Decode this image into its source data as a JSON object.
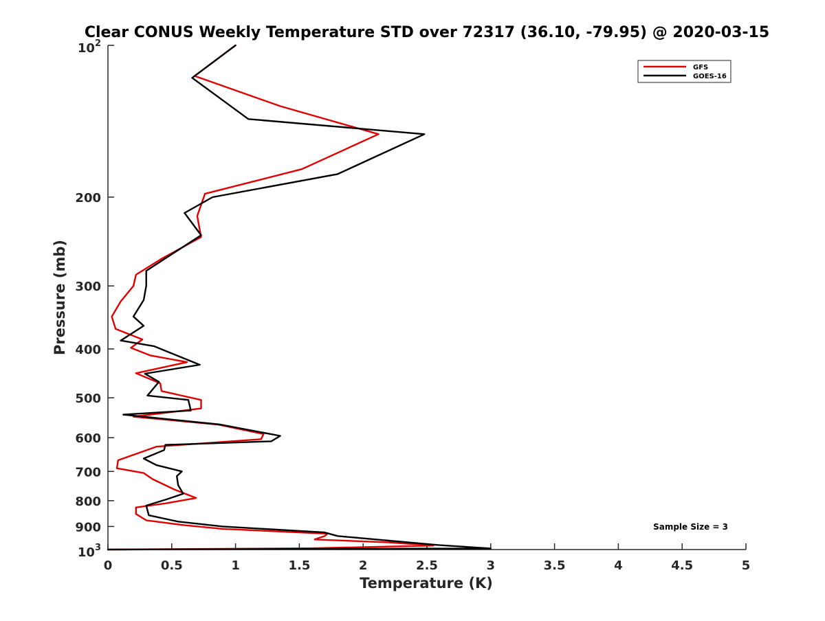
{
  "chart_data": {
    "type": "line",
    "title": "Clear CONUS Weekly Temperature STD over 72317 (36.10, -79.95) @ 2020-03-15",
    "xlabel": "Temperature (K)",
    "ylabel": "Pressure (mb)",
    "xlim": [
      0,
      5
    ],
    "ylim": [
      100,
      1000
    ],
    "y_scale": "log",
    "y_reversed": true,
    "grid": false,
    "legend_position": "top-right",
    "x_ticks": [
      0,
      0.5,
      1,
      1.5,
      2,
      2.5,
      3,
      3.5,
      4,
      4.5,
      5
    ],
    "x_tick_labels": [
      "0",
      "0.5",
      "1",
      "1.5",
      "2",
      "2.5",
      "3",
      "3.5",
      "4",
      "4.5",
      "5"
    ],
    "y_ticks": [
      100,
      200,
      300,
      400,
      500,
      600,
      700,
      800,
      900,
      1000
    ],
    "y_tick_labels": [
      "10²",
      "200",
      "300",
      "400",
      "500",
      "600",
      "700",
      "800",
      "900",
      "10³"
    ],
    "annotation": "Sample Size = 3",
    "series": [
      {
        "name": "GFS",
        "color": "#e00000",
        "points": [
          [
            1.0,
            100
          ],
          [
            0.68,
            115
          ],
          [
            1.35,
            132
          ],
          [
            2.12,
            150
          ],
          [
            1.52,
            176
          ],
          [
            0.76,
            197
          ],
          [
            0.7,
            218
          ],
          [
            0.73,
            240
          ],
          [
            0.42,
            265
          ],
          [
            0.22,
            285
          ],
          [
            0.2,
            300
          ],
          [
            0.1,
            322
          ],
          [
            0.03,
            345
          ],
          [
            0.06,
            365
          ],
          [
            0.27,
            383
          ],
          [
            0.18,
            398
          ],
          [
            0.33,
            412
          ],
          [
            0.62,
            425
          ],
          [
            0.22,
            447
          ],
          [
            0.41,
            468
          ],
          [
            0.42,
            485
          ],
          [
            0.73,
            505
          ],
          [
            0.73,
            525
          ],
          [
            0.2,
            545
          ],
          [
            0.86,
            565
          ],
          [
            1.22,
            590
          ],
          [
            1.2,
            604
          ],
          [
            0.38,
            625
          ],
          [
            0.08,
            665
          ],
          [
            0.07,
            690
          ],
          [
            0.28,
            705
          ],
          [
            0.35,
            725
          ],
          [
            0.52,
            760
          ],
          [
            0.69,
            790
          ],
          [
            0.45,
            810
          ],
          [
            0.22,
            825
          ],
          [
            0.22,
            850
          ],
          [
            0.3,
            875
          ],
          [
            0.6,
            895
          ],
          [
            0.9,
            910
          ],
          [
            1.72,
            930
          ],
          [
            1.7,
            940
          ],
          [
            1.62,
            955
          ],
          [
            2.2,
            968
          ],
          [
            2.55,
            982
          ],
          [
            1.6,
            994
          ],
          [
            0.0,
            1000
          ]
        ]
      },
      {
        "name": "GOES-16",
        "color": "#000000",
        "points": [
          [
            1.0,
            100
          ],
          [
            0.66,
            116
          ],
          [
            1.1,
            140
          ],
          [
            2.48,
            150
          ],
          [
            1.8,
            180
          ],
          [
            0.82,
            200
          ],
          [
            0.6,
            215
          ],
          [
            0.73,
            238
          ],
          [
            0.3,
            280
          ],
          [
            0.3,
            300
          ],
          [
            0.28,
            320
          ],
          [
            0.2,
            345
          ],
          [
            0.28,
            360
          ],
          [
            0.1,
            385
          ],
          [
            0.36,
            395
          ],
          [
            0.72,
            430
          ],
          [
            0.29,
            448
          ],
          [
            0.4,
            465
          ],
          [
            0.31,
            495
          ],
          [
            0.63,
            505
          ],
          [
            0.65,
            530
          ],
          [
            0.12,
            540
          ],
          [
            0.88,
            565
          ],
          [
            1.35,
            595
          ],
          [
            1.28,
            610
          ],
          [
            0.45,
            620
          ],
          [
            0.44,
            635
          ],
          [
            0.28,
            660
          ],
          [
            0.38,
            680
          ],
          [
            0.58,
            700
          ],
          [
            0.54,
            715
          ],
          [
            0.55,
            745
          ],
          [
            0.59,
            775
          ],
          [
            0.46,
            795
          ],
          [
            0.3,
            818
          ],
          [
            0.32,
            855
          ],
          [
            0.55,
            880
          ],
          [
            0.9,
            900
          ],
          [
            1.7,
            925
          ],
          [
            1.8,
            940
          ],
          [
            2.2,
            960
          ],
          [
            2.6,
            980
          ],
          [
            3.0,
            995
          ],
          [
            0.0,
            1000
          ]
        ]
      }
    ]
  }
}
